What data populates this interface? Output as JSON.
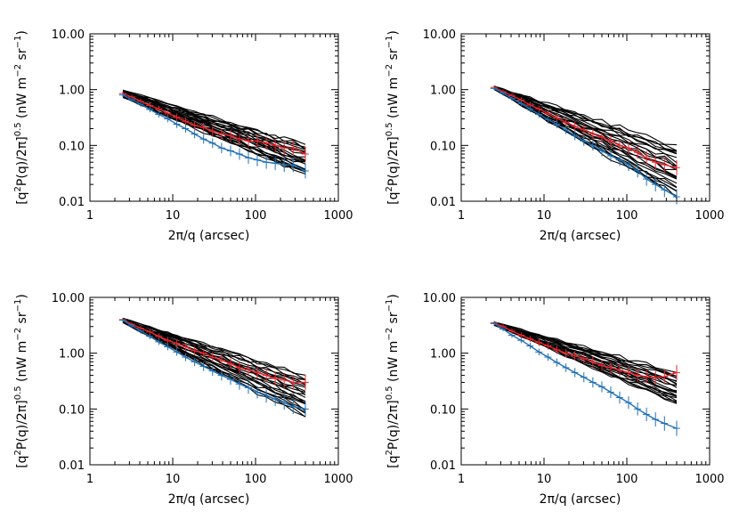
{
  "chart_data": [
    {
      "type": "line",
      "xscale": "log",
      "yscale": "log",
      "xlim": [
        1,
        1000
      ],
      "ylim": [
        0.01,
        10
      ],
      "xticks": [
        "1",
        "10",
        "100",
        "1000"
      ],
      "yticks": [
        "0.01",
        "0.10",
        "1.00",
        "10.00"
      ],
      "xlabel": "2π/q (arcsec)",
      "ylabel": {
        "base": "[q",
        "sup1": "2",
        "mid": "P(q)/2π]",
        "sup2": "0.5",
        "unit": " (nW m",
        "sup3": "−2",
        "unit2": " sr",
        "sup4": "−1",
        "end": ")"
      },
      "x": [
        2.5,
        3.2,
        4.1,
        5.3,
        6.8,
        8.7,
        11.2,
        14.3,
        18.4,
        23.6,
        30.3,
        38.9,
        50,
        64,
        82,
        105,
        135,
        173,
        222,
        285,
        400
      ],
      "black_bundle": {
        "count": 24,
        "start": [
          0.72,
          0.98
        ],
        "end": [
          0.03,
          0.1
        ],
        "jitter": 0.1
      },
      "series": [
        {
          "color": "#e8262e",
          "values": [
            0.85,
            0.74,
            0.62,
            0.52,
            0.45,
            0.38,
            0.32,
            0.27,
            0.23,
            0.21,
            0.18,
            0.16,
            0.15,
            0.13,
            0.12,
            0.12,
            0.11,
            0.1,
            0.09,
            0.09,
            0.07
          ]
        },
        {
          "color": "#1f6fb2",
          "values": [
            0.8,
            0.66,
            0.55,
            0.44,
            0.36,
            0.3,
            0.24,
            0.2,
            0.16,
            0.13,
            0.11,
            0.09,
            0.08,
            0.07,
            0.06,
            0.055,
            0.05,
            0.048,
            0.045,
            0.045,
            0.035
          ]
        }
      ]
    },
    {
      "type": "line",
      "xscale": "log",
      "yscale": "log",
      "xlim": [
        1,
        1000
      ],
      "ylim": [
        0.01,
        10
      ],
      "xticks": [
        "1",
        "10",
        "100",
        "1000"
      ],
      "yticks": [
        "0.01",
        "0.10",
        "1.00",
        "10.00"
      ],
      "xlabel": "2π/q (arcsec)",
      "ylabel": {
        "base": "[q",
        "sup1": "2",
        "mid": "P(q)/2π]",
        "sup2": "0.5",
        "unit": " (nW m",
        "sup3": "−2",
        "unit2": " sr",
        "sup4": "−1",
        "end": ")"
      },
      "x": [
        2.5,
        3.2,
        4.1,
        5.3,
        6.8,
        8.7,
        11.2,
        14.3,
        18.4,
        23.6,
        30.3,
        38.9,
        50,
        64,
        82,
        105,
        135,
        173,
        222,
        285,
        400
      ],
      "black_bundle": {
        "count": 24,
        "start": [
          1.0,
          1.15
        ],
        "end": [
          0.012,
          0.1
        ],
        "jitter": 0.1
      },
      "series": [
        {
          "color": "#e8262e",
          "values": [
            1.1,
            0.92,
            0.78,
            0.65,
            0.53,
            0.45,
            0.37,
            0.31,
            0.26,
            0.22,
            0.19,
            0.16,
            0.14,
            0.12,
            0.1,
            0.09,
            0.075,
            0.06,
            0.05,
            0.045,
            0.04
          ]
        },
        {
          "color": "#1f6fb2",
          "values": [
            1.05,
            0.86,
            0.7,
            0.56,
            0.45,
            0.36,
            0.29,
            0.24,
            0.19,
            0.15,
            0.12,
            0.1,
            0.08,
            0.065,
            0.055,
            0.045,
            0.035,
            0.025,
            0.02,
            0.016,
            0.012
          ]
        }
      ]
    },
    {
      "type": "line",
      "xscale": "log",
      "yscale": "log",
      "xlim": [
        1,
        1000
      ],
      "ylim": [
        0.01,
        10
      ],
      "xticks": [
        "1",
        "10",
        "100",
        "1000"
      ],
      "yticks": [
        "0.01",
        "0.10",
        "1.00",
        "10.00"
      ],
      "xlabel": "2π/q (arcsec)",
      "ylabel": {
        "base": "[q",
        "sup1": "2",
        "mid": "P(q)/2π]",
        "sup2": "0.5",
        "unit": " (nW m",
        "sup3": "−2",
        "unit2": " sr",
        "sup4": "−1",
        "end": ")"
      },
      "x": [
        2.5,
        3.2,
        4.1,
        5.3,
        6.8,
        8.7,
        11.2,
        14.3,
        18.4,
        23.6,
        30.3,
        38.9,
        50,
        64,
        82,
        105,
        135,
        173,
        222,
        285,
        400
      ],
      "black_bundle": {
        "count": 24,
        "start": [
          3.5,
          4.2
        ],
        "end": [
          0.07,
          0.4
        ],
        "jitter": 0.09
      },
      "series": [
        {
          "color": "#e8262e",
          "values": [
            4.0,
            3.3,
            2.8,
            2.4,
            2.0,
            1.7,
            1.5,
            1.3,
            1.1,
            1.0,
            0.85,
            0.75,
            0.65,
            0.55,
            0.5,
            0.45,
            0.4,
            0.35,
            0.33,
            0.3,
            0.3
          ]
        },
        {
          "color": "#1f6fb2",
          "values": [
            3.9,
            3.1,
            2.5,
            2.0,
            1.6,
            1.3,
            1.05,
            0.85,
            0.7,
            0.58,
            0.48,
            0.4,
            0.34,
            0.28,
            0.24,
            0.2,
            0.17,
            0.15,
            0.13,
            0.11,
            0.1
          ]
        }
      ]
    },
    {
      "type": "line",
      "xscale": "log",
      "yscale": "log",
      "xlim": [
        1,
        1000
      ],
      "ylim": [
        0.01,
        10
      ],
      "xticks": [
        "1",
        "10",
        "100",
        "1000"
      ],
      "yticks": [
        "0.01",
        "0.10",
        "1.00",
        "10.00"
      ],
      "xlabel": "2π/q (arcsec)",
      "ylabel": {
        "base": "[q",
        "sup1": "2",
        "mid": "P(q)/2π]",
        "sup2": "0.5",
        "unit": " (nW m",
        "sup3": "−2",
        "unit2": " sr",
        "sup4": "−1",
        "end": ")"
      },
      "x": [
        2.5,
        3.2,
        4.1,
        5.3,
        6.8,
        8.7,
        11.2,
        14.3,
        18.4,
        23.6,
        30.3,
        38.9,
        50,
        64,
        82,
        105,
        135,
        173,
        222,
        285,
        400
      ],
      "black_bundle": {
        "count": 24,
        "start": [
          3.2,
          3.6
        ],
        "end": [
          0.12,
          0.45
        ],
        "jitter": 0.08
      },
      "series": [
        {
          "color": "#e8262e",
          "values": [
            3.5,
            3.0,
            2.5,
            2.1,
            1.8,
            1.55,
            1.35,
            1.15,
            1.0,
            0.9,
            0.8,
            0.7,
            0.6,
            0.55,
            0.5,
            0.45,
            0.4,
            0.38,
            0.36,
            0.38,
            0.45
          ]
        },
        {
          "color": "#1f6fb2",
          "values": [
            3.4,
            2.7,
            2.1,
            1.7,
            1.35,
            1.05,
            0.85,
            0.68,
            0.55,
            0.45,
            0.37,
            0.3,
            0.25,
            0.2,
            0.16,
            0.13,
            0.1,
            0.08,
            0.065,
            0.055,
            0.045
          ]
        }
      ]
    }
  ]
}
